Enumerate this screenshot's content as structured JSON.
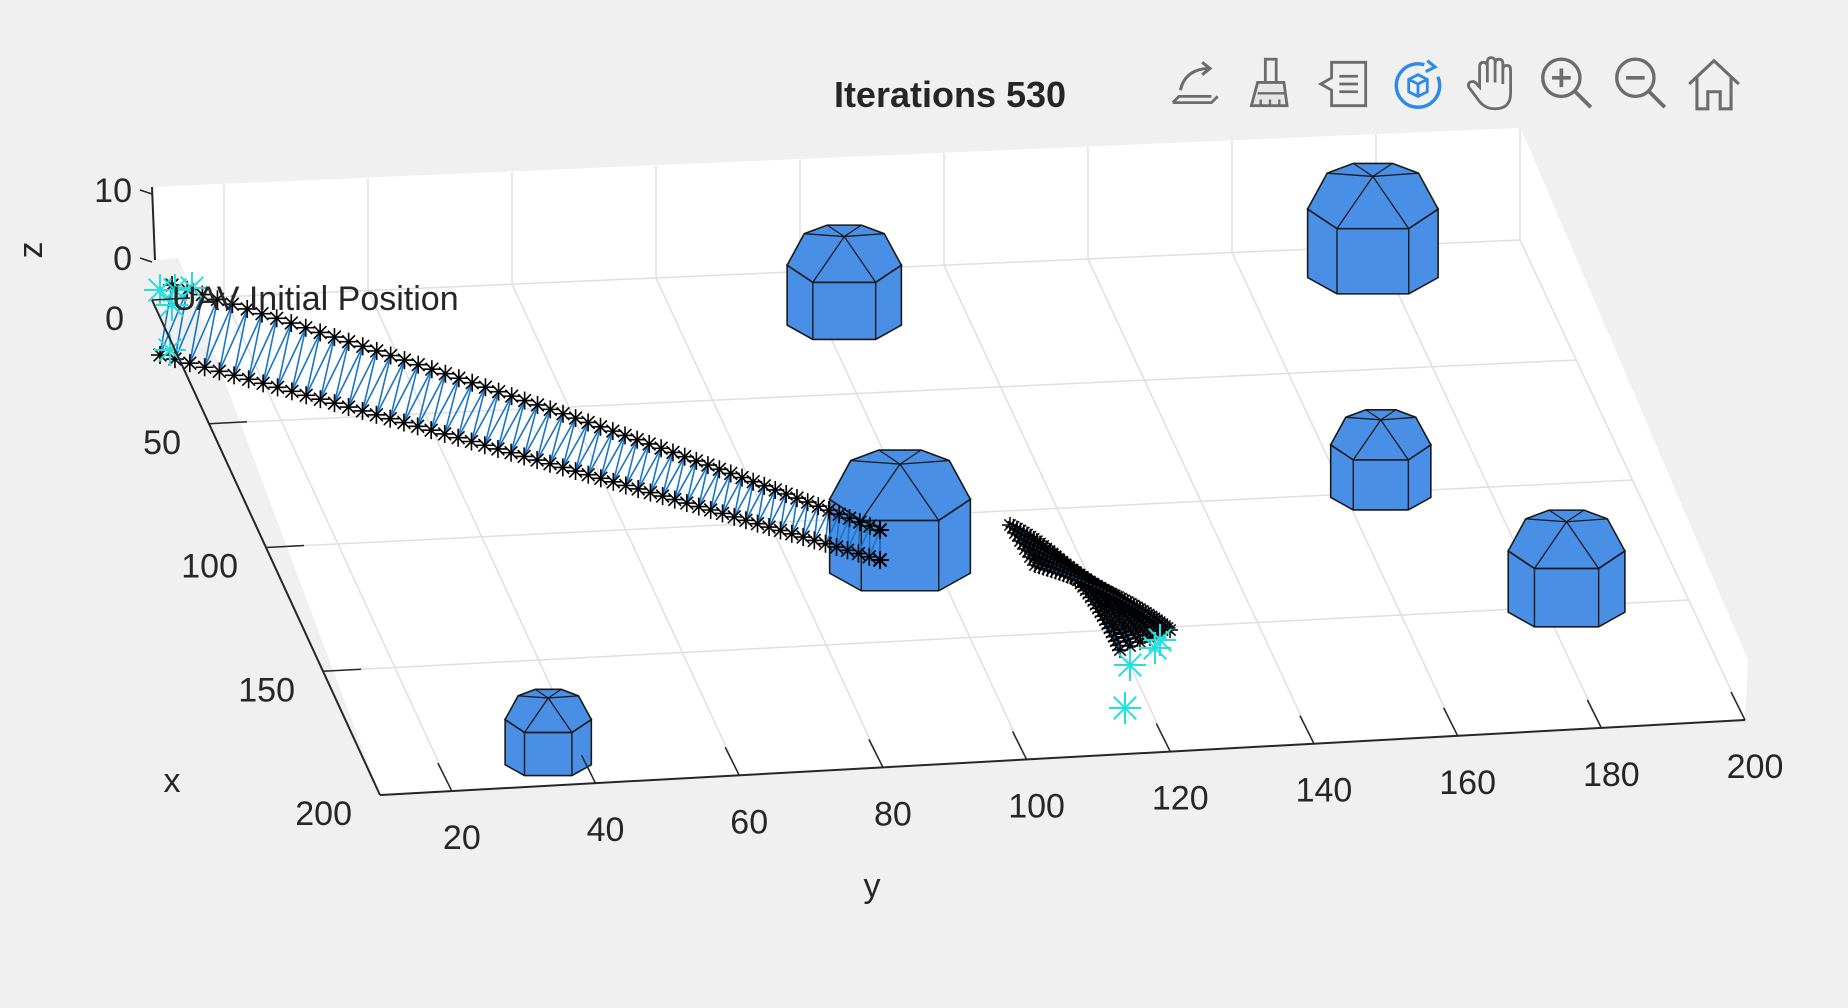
{
  "chart_data": {
    "type": "scatter",
    "title": "Iterations 530",
    "xlabel": "x",
    "ylabel": "y",
    "zlabel": "z",
    "x_ticks": [
      "0",
      "50",
      "100",
      "150",
      "200"
    ],
    "y_ticks": [
      "20",
      "40",
      "60",
      "80",
      "100",
      "120",
      "140",
      "160",
      "180",
      "200"
    ],
    "z_ticks": [
      "0",
      "10"
    ],
    "xlim": [
      0,
      200
    ],
    "ylim": [
      10,
      200
    ],
    "zlim": [
      0,
      10
    ],
    "grid": true,
    "annotation": "UAV Initial Position",
    "obstacles": [
      {
        "x": 190,
        "y": 35,
        "r": 13
      },
      {
        "x": 120,
        "y": 95,
        "r": 20
      },
      {
        "x": 20,
        "y": 103,
        "r": 15
      },
      {
        "x": 10,
        "y": 178,
        "r": 17
      },
      {
        "x": 100,
        "y": 165,
        "r": 14
      },
      {
        "x": 150,
        "y": 183,
        "r": 17
      }
    ],
    "colors": {
      "obstacle": "#4a8fe6",
      "trajectory": "#1a74c7",
      "marker": "#000000",
      "start_end_marker": "#22e0e0"
    }
  },
  "toolbar": {
    "icons": [
      "export-icon",
      "brush-icon",
      "data-tips-icon",
      "rotate-3d-icon",
      "pan-icon",
      "zoom-in-icon",
      "zoom-out-icon",
      "home-icon"
    ]
  }
}
